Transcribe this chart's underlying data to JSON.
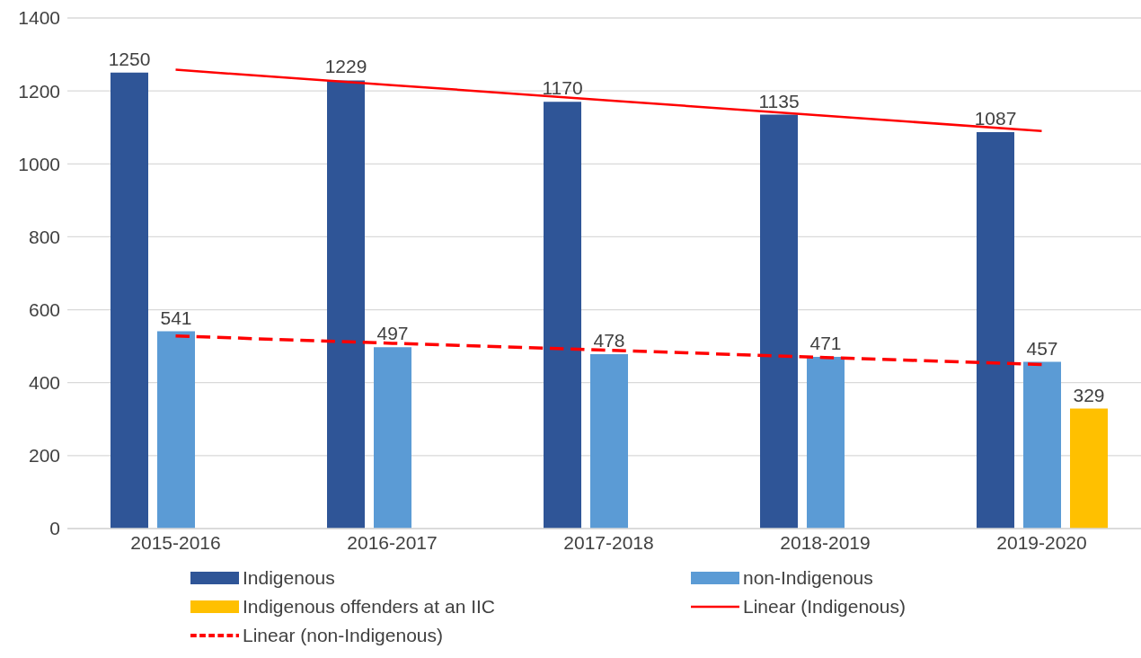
{
  "chart_data": {
    "type": "bar",
    "categories": [
      "2015-2016",
      "2016-2017",
      "2017-2018",
      "2018-2019",
      "2019-2020"
    ],
    "series": [
      {
        "name": "Indigenous",
        "color": "#2f5597",
        "values": [
          1250,
          1229,
          1170,
          1135,
          1087
        ],
        "value_labels": [
          "1250",
          "1229",
          "1170",
          "1135",
          "1087"
        ]
      },
      {
        "name": "non-Indigenous",
        "color": "#5b9bd5",
        "values": [
          541,
          497,
          478,
          471,
          457
        ],
        "value_labels": [
          "541",
          "497",
          "478",
          "471",
          "457"
        ]
      },
      {
        "name": "Indigenous offenders at an IIC",
        "color": "#ffc000",
        "values": [
          null,
          null,
          null,
          null,
          329
        ],
        "value_labels": [
          null,
          null,
          null,
          null,
          "329"
        ]
      },
      {
        "name": "Linear (Indigenous)",
        "type": "line",
        "color": "#ff0000",
        "line_style": "solid",
        "values": [
          1258,
          1216,
          1174,
          1132,
          1090
        ]
      },
      {
        "name": "Linear (non-Indigenous)",
        "type": "line",
        "color": "#ff0000",
        "line_style": "dashed",
        "values": [
          528,
          508,
          489,
          469,
          450
        ]
      }
    ],
    "ylim": [
      0,
      1400
    ],
    "yticks": [
      0,
      200,
      400,
      600,
      800,
      1000,
      1200,
      1400
    ],
    "grid": "y",
    "legend": "bottom",
    "marker": "none"
  }
}
